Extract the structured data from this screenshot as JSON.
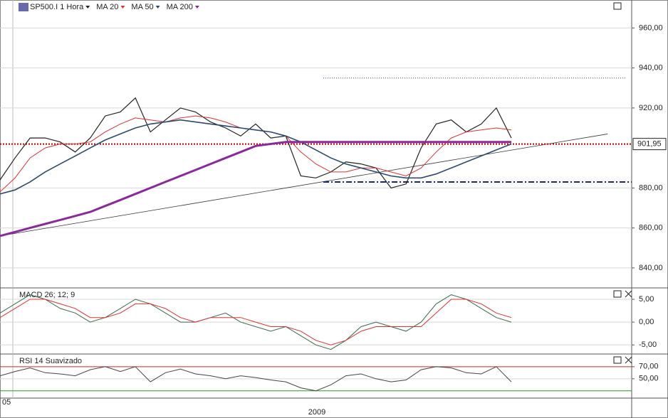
{
  "chart_data": [
    {
      "type": "line",
      "x": [
        0,
        1,
        2,
        3,
        4,
        5,
        6,
        7,
        8,
        9,
        10,
        11,
        12,
        13,
        14,
        15,
        16,
        17,
        18,
        19,
        20,
        21,
        22,
        23,
        24,
        25,
        26,
        27,
        28,
        29,
        30,
        31,
        32,
        33,
        34
      ],
      "xlim": [
        0,
        42
      ],
      "ylim": [
        830,
        974
      ],
      "yticks": [
        {
          "value": 840,
          "label": "840,00"
        },
        {
          "value": 860,
          "label": "860,00"
        },
        {
          "value": 880,
          "label": "880,00"
        },
        {
          "value": 920,
          "label": "920,00"
        },
        {
          "value": 940,
          "label": "940,00"
        },
        {
          "value": 960,
          "label": "960,00"
        }
      ],
      "last_price": {
        "value": 901.95,
        "label": "901,95",
        "color": "#c00000"
      },
      "series": [
        {
          "name": "SP500.I 1 Hora",
          "color": "#222222",
          "width": 1.2,
          "values": [
            884,
            895,
            905,
            905,
            903,
            898,
            905,
            916,
            918,
            925,
            908,
            914,
            920,
            918,
            913,
            910,
            906,
            912,
            905,
            906,
            886,
            885,
            888,
            893,
            892,
            890,
            880,
            882,
            900,
            912,
            914,
            908,
            912,
            920,
            905
          ]
        },
        {
          "name": "MA 20",
          "color": "#e03030",
          "width": 1,
          "values": [
            878,
            885,
            895,
            900,
            902,
            902,
            903,
            908,
            912,
            915,
            914,
            913,
            915,
            916,
            915,
            913,
            910,
            909,
            908,
            906,
            898,
            892,
            888,
            888,
            890,
            890,
            888,
            886,
            890,
            898,
            905,
            908,
            909,
            910,
            909
          ]
        },
        {
          "name": "MA 50",
          "color": "#2b4a6e",
          "width": 1.6,
          "values": [
            877,
            879,
            883,
            888,
            892,
            896,
            900,
            904,
            907,
            910,
            912,
            913,
            914,
            913,
            912,
            911,
            910,
            909,
            908,
            906,
            903,
            899,
            895,
            892,
            890,
            888,
            886,
            885,
            885,
            887,
            890,
            893,
            896,
            899,
            902
          ]
        },
        {
          "name": "MA 200",
          "color": "#8a2a9a",
          "width": 3,
          "values": [
            856,
            858,
            860,
            862,
            864,
            866,
            868,
            871,
            874,
            877,
            880,
            883,
            886,
            889,
            892,
            895,
            898,
            901,
            902,
            903,
            903,
            903,
            903,
            903,
            903,
            903,
            903,
            903,
            903,
            903,
            903,
            903,
            903,
            903,
            903
          ]
        }
      ],
      "trendline": {
        "x": [
          0,
          40.4
        ],
        "y": [
          856,
          907
        ],
        "color": "#333333"
      },
      "levels": [
        {
          "y": 883,
          "x": [
            21.5,
            42
          ],
          "color": "#1a237e"
        },
        {
          "y": 935,
          "x": [
            21.5,
            41.6
          ],
          "color": "#3040a0"
        }
      ]
    },
    {
      "type": "line",
      "title": "MACD 26; 12; 9",
      "x": [
        0,
        1,
        2,
        3,
        4,
        5,
        6,
        7,
        8,
        9,
        10,
        11,
        12,
        13,
        14,
        15,
        16,
        17,
        18,
        19,
        20,
        21,
        22,
        23,
        24,
        25,
        26,
        27,
        28,
        29,
        30,
        31,
        32,
        33,
        34
      ],
      "xlim": [
        0,
        42
      ],
      "ylim": [
        -7,
        7.5
      ],
      "yticks": [
        {
          "value": -5,
          "label": "-5,00"
        },
        {
          "value": 0,
          "label": "0,00"
        },
        {
          "value": 5,
          "label": "5,00"
        }
      ],
      "series": [
        {
          "color": "#3a6a4a",
          "width": 1,
          "values": [
            2,
            4,
            6,
            5,
            3,
            2,
            0,
            1,
            3,
            5,
            4,
            2,
            0,
            0,
            1,
            2,
            0,
            -1,
            -2,
            -1,
            -3,
            -5,
            -6,
            -4,
            -1,
            0,
            -1,
            -2,
            0,
            4,
            6,
            5,
            3,
            1,
            0
          ]
        },
        {
          "color": "#e03030",
          "width": 1,
          "values": [
            1,
            3,
            5,
            5,
            4,
            3,
            1,
            1,
            2,
            4,
            4,
            3,
            1,
            0,
            1,
            1,
            1,
            0,
            -1,
            -1,
            -2,
            -4,
            -5,
            -4,
            -2,
            -1,
            -1,
            -1,
            -1,
            2,
            5,
            5,
            4,
            2,
            1
          ]
        }
      ]
    },
    {
      "type": "line",
      "title": "RSI 14 Suavizado",
      "x": [
        0,
        1,
        2,
        3,
        4,
        5,
        6,
        7,
        8,
        9,
        10,
        11,
        12,
        13,
        14,
        15,
        16,
        17,
        18,
        19,
        20,
        21,
        22,
        23,
        24,
        25,
        26,
        27,
        28,
        29,
        30,
        31,
        32,
        33,
        34
      ],
      "xlim": [
        0,
        42
      ],
      "ylim": [
        18,
        91
      ],
      "yticks": [
        {
          "value": 50,
          "label": "50,00"
        },
        {
          "value": 70,
          "label": "70,00"
        }
      ],
      "rsi_levels": [
        {
          "y": 70,
          "color": "#d03030"
        },
        {
          "y": 30,
          "color": "#2a9a2a"
        }
      ],
      "series": [
        {
          "color": "#444444",
          "width": 1,
          "values": [
            55,
            62,
            68,
            60,
            58,
            55,
            65,
            70,
            62,
            70,
            45,
            60,
            66,
            58,
            55,
            50,
            55,
            52,
            48,
            45,
            35,
            30,
            40,
            55,
            58,
            50,
            45,
            48,
            65,
            70,
            68,
            60,
            58,
            70,
            45
          ]
        }
      ]
    }
  ],
  "x_axis_labels": [
    "05",
    "2009"
  ]
}
